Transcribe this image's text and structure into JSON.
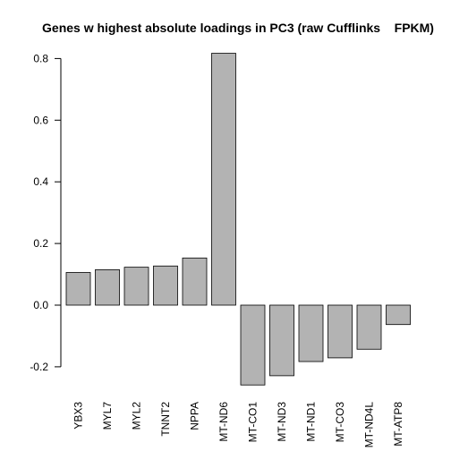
{
  "chart_data": {
    "type": "bar",
    "title": "Genes w highest absolute loadings in PC3 (raw Cufflinks    FPKM)",
    "xlabel": "",
    "ylabel": "",
    "categories": [
      "YBX3",
      "MYL7",
      "MYL2",
      "TNNT2",
      "NPPA",
      "MT-ND6",
      "MT-CO1",
      "MT-ND3",
      "MT-ND1",
      "MT-CO3",
      "MT-ND4L",
      "MT-ATP8"
    ],
    "values": [
      0.106,
      0.115,
      0.123,
      0.127,
      0.153,
      0.817,
      -0.259,
      -0.229,
      -0.183,
      -0.171,
      -0.143,
      -0.063
    ],
    "ylim": [
      -0.27,
      0.84
    ],
    "yticks": [
      -0.2,
      0.0,
      0.2,
      0.4,
      0.6,
      0.8
    ],
    "ytick_labels": [
      "-0.2",
      "0.0",
      "0.2",
      "0.4",
      "0.6",
      "0.8"
    ],
    "bar_color": "#b3b3b3",
    "grid": false,
    "legend": "none"
  }
}
